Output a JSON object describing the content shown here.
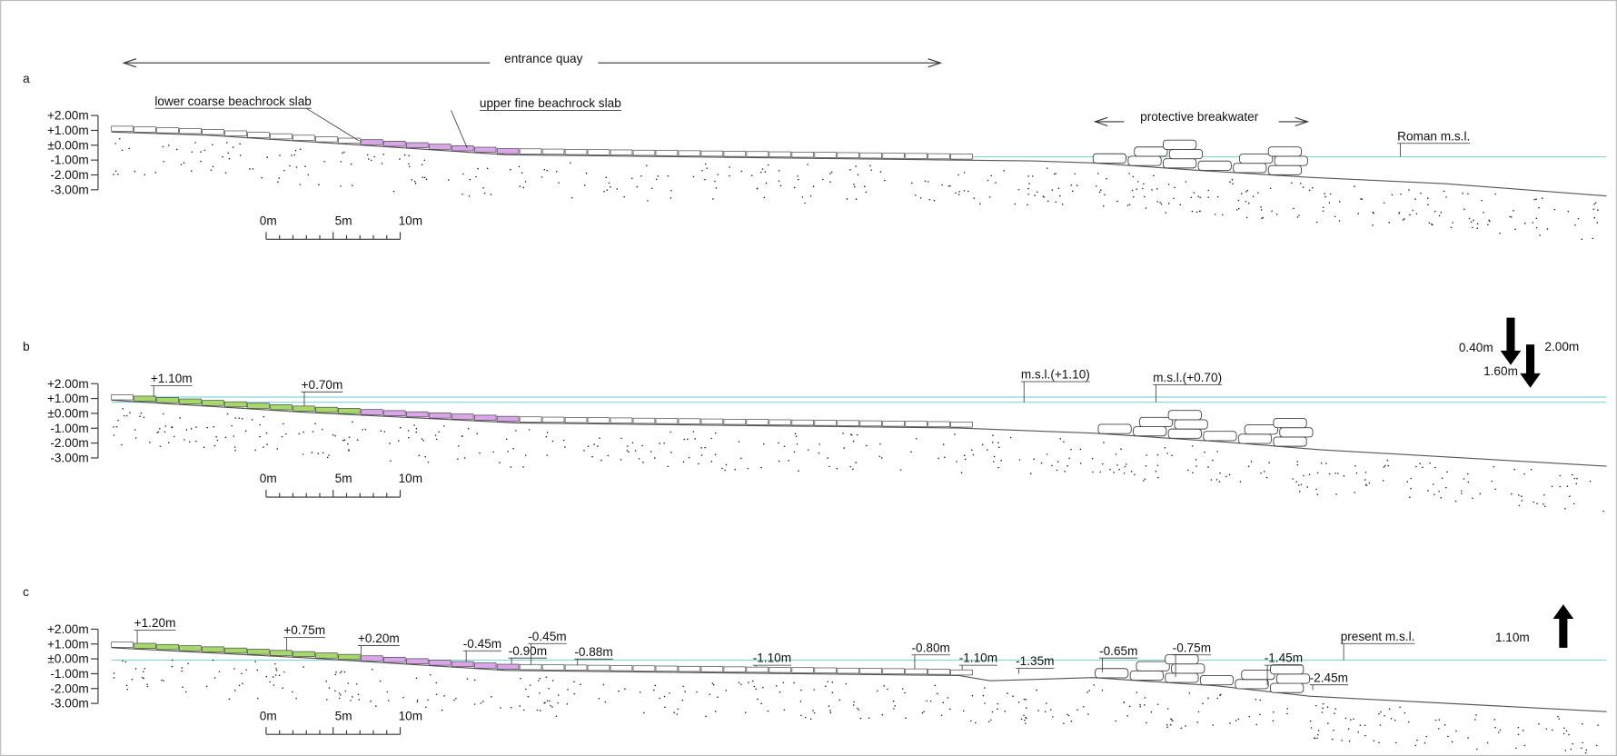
{
  "panels": [
    {
      "label": "a",
      "levels": [
        "+2.00m",
        "+1.00m",
        "±0.00m",
        "-1.00m",
        "-2.00m",
        "-3.00m"
      ],
      "scale": [
        "0m",
        "5m",
        "10m"
      ],
      "notes": [
        "entrance quay",
        "lower coarse beachrock slab",
        "upper fine beachrock slab",
        "protective breakwater",
        "Roman m.s.l."
      ]
    },
    {
      "label": "b",
      "levels": [
        "+2.00m",
        "+1.00m",
        "±0.00m",
        "-1.00m",
        "-2.00m",
        "-3.00m"
      ],
      "scale": [
        "0m",
        "5m",
        "10m"
      ],
      "notes": [
        "+1.10m",
        "+0.70m",
        "m.s.l.(+1.10)",
        "m.s.l.(+0.70)",
        "0.40m",
        "2.00m",
        "1.60m"
      ]
    },
    {
      "label": "c",
      "levels": [
        "+2.00m",
        "+1.00m",
        "±0.00m",
        "-1.00m",
        "-2.00m",
        "-3.00m"
      ],
      "scale": [
        "0m",
        "5m",
        "10m"
      ],
      "notes": [
        "+1.20m",
        "+0.75m",
        "+0.20m",
        "-0.45m",
        "-0.90m",
        "-0.45m",
        "-0.88m",
        "-1.10m",
        "-0.80m",
        "-1.10m",
        "-1.35m",
        "-0.65m",
        "-0.75m",
        "-1.45m",
        "-2.45m",
        "present m.s.l.",
        "1.10m"
      ]
    }
  ]
}
